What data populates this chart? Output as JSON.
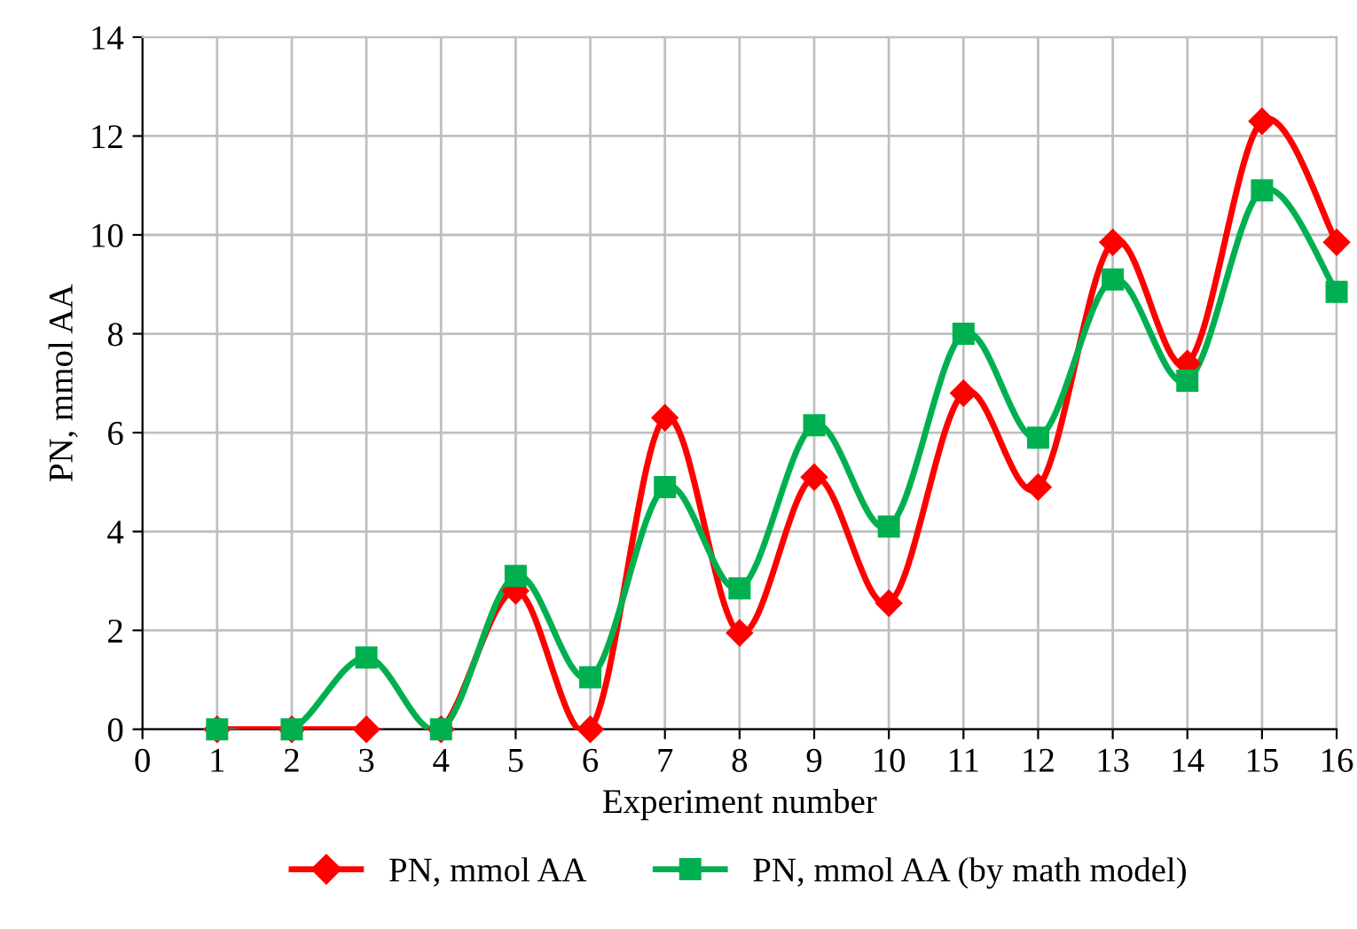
{
  "chart_data": {
    "type": "line",
    "xlabel": "Experiment number",
    "ylabel": "PN, mmol AA",
    "x": [
      1,
      2,
      3,
      4,
      5,
      6,
      7,
      8,
      9,
      10,
      11,
      12,
      13,
      14,
      15,
      16
    ],
    "series": [
      {
        "name": "PN, mmol AA",
        "color": "#ff0000",
        "marker": "diamond",
        "values": [
          0,
          0,
          0,
          0,
          2.8,
          0,
          6.3,
          1.95,
          5.1,
          2.55,
          6.8,
          4.9,
          9.85,
          7.4,
          12.3,
          9.85
        ]
      },
      {
        "name": "PN, mmol AA (by math model)",
        "color": "#00b050",
        "marker": "square",
        "values": [
          0,
          0,
          1.45,
          0,
          3.1,
          1.05,
          4.9,
          2.85,
          6.15,
          4.1,
          8.0,
          5.9,
          9.1,
          7.05,
          10.9,
          8.85
        ]
      }
    ],
    "xlim": [
      0,
      16
    ],
    "xticks": [
      0,
      1,
      2,
      3,
      4,
      5,
      6,
      7,
      8,
      9,
      10,
      11,
      12,
      13,
      14,
      15,
      16
    ],
    "ylim": [
      0,
      14
    ],
    "yticks": [
      0,
      2,
      4,
      6,
      8,
      10,
      12,
      14
    ],
    "grid": true,
    "legend": "bottom",
    "line_style": "solid"
  }
}
